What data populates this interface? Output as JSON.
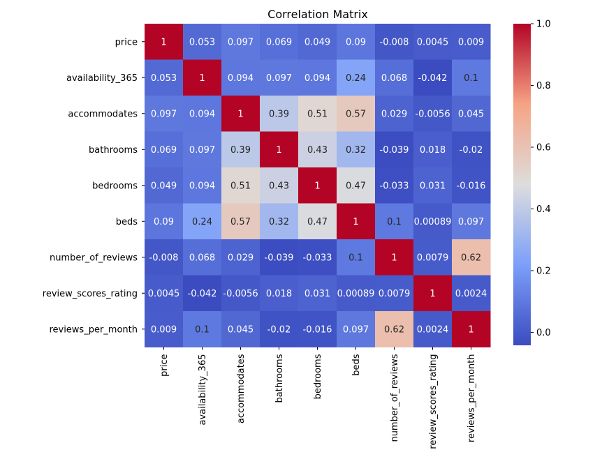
{
  "chart_data": {
    "type": "heatmap",
    "title": "Correlation Matrix",
    "xlabel": "",
    "ylabel": "",
    "colormap": "coolwarm",
    "value_range": [
      -0.042,
      1.0
    ],
    "labels": [
      "price",
      "availability_365",
      "accommodates",
      "bathrooms",
      "bedrooms",
      "beds",
      "number_of_reviews",
      "review_scores_rating",
      "reviews_per_month"
    ],
    "matrix": [
      [
        1,
        0.053,
        0.097,
        0.069,
        0.049,
        0.09,
        -0.008,
        0.0045,
        0.009
      ],
      [
        0.053,
        1,
        0.094,
        0.097,
        0.094,
        0.24,
        0.068,
        -0.042,
        0.1
      ],
      [
        0.097,
        0.094,
        1,
        0.39,
        0.51,
        0.57,
        0.029,
        -0.0056,
        0.045
      ],
      [
        0.069,
        0.097,
        0.39,
        1,
        0.43,
        0.32,
        -0.039,
        0.018,
        -0.02
      ],
      [
        0.049,
        0.094,
        0.51,
        0.43,
        1,
        0.47,
        -0.033,
        0.031,
        -0.016
      ],
      [
        0.09,
        0.24,
        0.57,
        0.32,
        0.47,
        1,
        0.1,
        0.00089,
        0.097
      ],
      [
        -0.008,
        0.068,
        0.029,
        -0.039,
        -0.033,
        0.1,
        1,
        0.0079,
        0.62
      ],
      [
        0.0045,
        -0.042,
        -0.0056,
        0.018,
        0.031,
        0.00089,
        0.0079,
        1,
        0.0024
      ],
      [
        0.009,
        0.1,
        0.045,
        -0.02,
        -0.016,
        0.097,
        0.62,
        0.0024,
        1
      ]
    ],
    "cell_text": [
      [
        "1",
        "0.053",
        "0.097",
        "0.069",
        "0.049",
        "0.09",
        "-0.008",
        "0.0045",
        "0.009"
      ],
      [
        "0.053",
        "1",
        "0.094",
        "0.097",
        "0.094",
        "0.24",
        "0.068",
        "-0.042",
        "0.1"
      ],
      [
        "0.097",
        "0.094",
        "1",
        "0.39",
        "0.51",
        "0.57",
        "0.029",
        "-0.0056",
        "0.045"
      ],
      [
        "0.069",
        "0.097",
        "0.39",
        "1",
        "0.43",
        "0.32",
        "-0.039",
        "0.018",
        "-0.02"
      ],
      [
        "0.049",
        "0.094",
        "0.51",
        "0.43",
        "1",
        "0.47",
        "-0.033",
        "0.031",
        "-0.016"
      ],
      [
        "0.09",
        "0.24",
        "0.57",
        "0.32",
        "0.47",
        "1",
        "0.1",
        "0.00089",
        "0.097"
      ],
      [
        "-0.008",
        "0.068",
        "0.029",
        "-0.039",
        "-0.033",
        "0.1",
        "1",
        "0.0079",
        "0.62"
      ],
      [
        "0.0045",
        "-0.042",
        "-0.0056",
        "0.018",
        "0.031",
        "0.00089",
        "0.0079",
        "1",
        "0.0024"
      ],
      [
        "0.009",
        "0.1",
        "0.045",
        "-0.02",
        "-0.016",
        "0.097",
        "0.62",
        "0.0024",
        "1"
      ]
    ],
    "colorbar": {
      "ticks": [
        0.0,
        0.2,
        0.4,
        0.6,
        0.8,
        1.0
      ],
      "tick_labels": [
        "0.0",
        "0.2",
        "0.4",
        "0.6",
        "0.8",
        "1.0"
      ]
    }
  }
}
